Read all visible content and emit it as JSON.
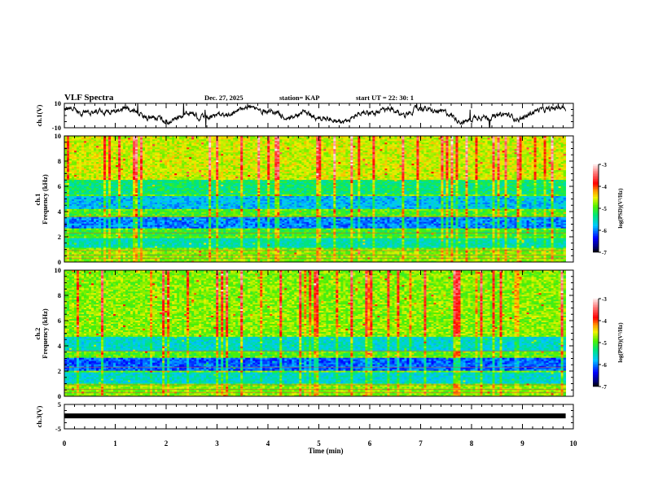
{
  "header": {
    "title": "VLF Spectra",
    "date": "Dec. 27, 2025",
    "station": "station= KAP",
    "start_time": "start  UT  =   22: 30: 1"
  },
  "chart_data": [
    {
      "type": "line",
      "name": "ch1-waveform",
      "ylabel": "ch.1(V)",
      "ylim": [
        -10,
        10
      ],
      "yticks": [
        "10",
        "-10"
      ],
      "xlim": [
        0,
        10
      ],
      "data_end_min": 9.85,
      "description_values": {
        "mean_approx_V": 1.5,
        "range_approx_V": [
          -7,
          10
        ]
      }
    },
    {
      "type": "heatmap",
      "name": "ch1-spectrogram",
      "ylabel_line1": "ch.1",
      "ylabel_line2": "Frequency  (kHz)",
      "ylim": [
        0,
        10
      ],
      "yticks": [
        "0",
        "2",
        "4",
        "6",
        "8",
        "10"
      ],
      "xlim": [
        0,
        10
      ],
      "colorbar": {
        "label": "log(PSD)(V²/Hz)",
        "range": [
          -7,
          -3
        ],
        "ticks": [
          "-3",
          "-4",
          "-5",
          "-6",
          "-7"
        ]
      },
      "bands_kHz": [
        {
          "from": 6.5,
          "to": 10,
          "level": -4.6
        },
        {
          "from": 5.4,
          "to": 6.5,
          "level": -5.3
        },
        {
          "from": 4.2,
          "to": 5.2,
          "level": -5.8
        },
        {
          "from": 3.7,
          "to": 4.1,
          "level": -5.0
        },
        {
          "from": 2.7,
          "to": 3.6,
          "level": -6.0
        },
        {
          "from": 2.0,
          "to": 2.6,
          "level": -5.1
        },
        {
          "from": 1.1,
          "to": 1.9,
          "level": -5.5
        },
        {
          "from": 0,
          "to": 1.0,
          "level": -4.8
        }
      ]
    },
    {
      "type": "heatmap",
      "name": "ch2-spectrogram",
      "ylabel_line1": "ch.2",
      "ylabel_line2": "Frequency  (kHz)",
      "ylim": [
        0,
        10
      ],
      "yticks": [
        "0",
        "2",
        "4",
        "6",
        "8",
        "10"
      ],
      "xlim": [
        0,
        10
      ],
      "colorbar": {
        "label": "log(PSD)(V²/Hz)",
        "range": [
          -7,
          -3
        ],
        "ticks": [
          "-3",
          "-4",
          "-5",
          "-6",
          "-7"
        ]
      },
      "bands_kHz": [
        {
          "from": 4.8,
          "to": 10,
          "level": -4.8
        },
        {
          "from": 3.6,
          "to": 4.7,
          "level": -5.6
        },
        {
          "from": 3.2,
          "to": 3.5,
          "level": -5.0
        },
        {
          "from": 2.0,
          "to": 3.1,
          "level": -6.1
        },
        {
          "from": 1.0,
          "to": 1.9,
          "level": -5.6
        },
        {
          "from": 0,
          "to": 0.9,
          "level": -4.8
        }
      ]
    },
    {
      "type": "line",
      "name": "ch3-waveform",
      "ylabel": "ch.3(V)",
      "ylim": [
        -5,
        5
      ],
      "yticks": [
        "5",
        "-5"
      ],
      "xlim": [
        0,
        10
      ],
      "constant_value_V": 0.3,
      "data_end_min": 9.85
    }
  ],
  "xaxis": {
    "label": "Time  (min)",
    "ticks": [
      "0",
      "1",
      "2",
      "3",
      "4",
      "5",
      "6",
      "7",
      "8",
      "9",
      "10"
    ],
    "range": [
      0,
      10
    ]
  },
  "colors": {
    "axis": "#000000",
    "trace": "#000000"
  }
}
